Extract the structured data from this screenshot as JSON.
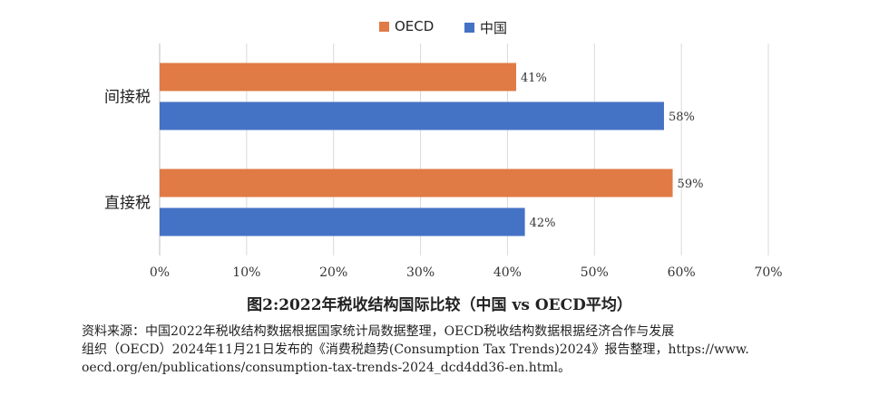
{
  "chart_data": {
    "type": "bar",
    "orientation": "horizontal",
    "categories": [
      "间接税",
      "直接税"
    ],
    "series": [
      {
        "name": "OECD",
        "values": [
          41,
          59
        ],
        "labels": [
          "41%",
          "59%"
        ],
        "color": "#E07B45"
      },
      {
        "name": "中国",
        "values": [
          58,
          42
        ],
        "labels": [
          "58%",
          "42%"
        ],
        "color": "#4472C4"
      }
    ],
    "xlim": [
      0,
      70
    ],
    "xticks": [
      0,
      10,
      20,
      30,
      40,
      50,
      60,
      70
    ],
    "xtick_labels": [
      "0%",
      "10%",
      "20%",
      "30%",
      "40%",
      "50%",
      "60%",
      "70%"
    ],
    "grid": true,
    "legend_position": "top-center"
  },
  "caption": {
    "title": "图2:2022年税收结构国际比较（中国 vs OECD平均）",
    "source_lines": [
      "资料来源：中国2022年税收结构数据根据国家统计局数据整理，OECD税收结构数据根据经济合作与发展",
      "组织（OECD）2024年11月21日发布的《消费税趋势(Consumption Tax Trends)2024》报告整理，https://www.",
      "oecd.org/en/publications/consumption-tax-trends-2024_dcd4dd36-en.html。"
    ]
  }
}
